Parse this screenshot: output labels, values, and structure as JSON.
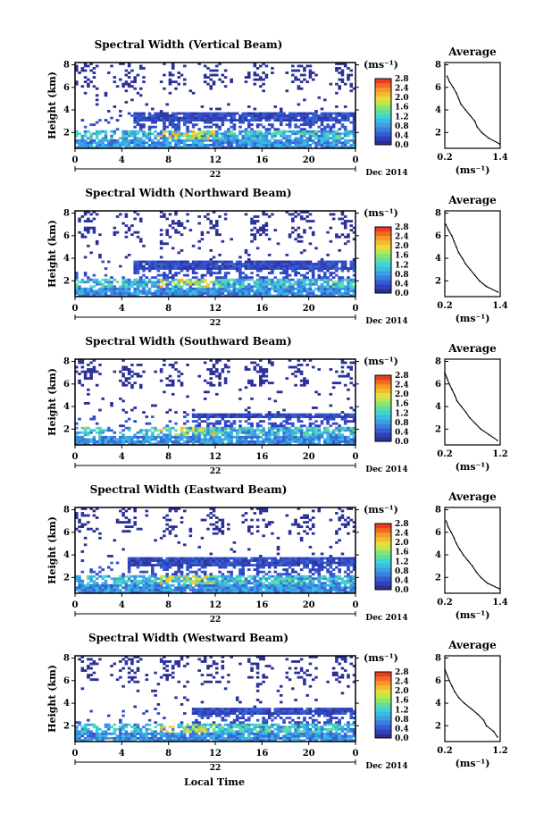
{
  "figure": {
    "xlabel": "Local Time",
    "date_label": "22",
    "month_label": "Dec 2014"
  },
  "chart_data": [
    {
      "type": "heatmap",
      "title": "Spectral Width (Vertical Beam)",
      "ylabel": "Height (km)",
      "xticks": [
        "0",
        "4",
        "8",
        "12",
        "16",
        "20",
        "0"
      ],
      "xlim": [
        0,
        24
      ],
      "yticks": [
        "2",
        "4",
        "6",
        "8"
      ],
      "ylim": [
        0.6,
        8.2
      ],
      "colorbar": {
        "label": "(ms⁻¹)",
        "ticks": [
          "0.0",
          "0.4",
          "0.8",
          "1.2",
          "1.6",
          "2.0",
          "2.4",
          "2.8"
        ],
        "range": [
          0.0,
          2.8
        ]
      },
      "dense_layer": {
        "start_hr": 5.0,
        "top_km": 3.7
      },
      "profile": {
        "title": "Average",
        "xlabel": "(ms⁻¹)",
        "xticks": [
          "0.2",
          "1.4"
        ],
        "xlim": [
          0.2,
          1.4
        ],
        "ylim": [
          0.6,
          8.2
        ],
        "yticks": [
          "2",
          "4",
          "6",
          "8"
        ],
        "height_km": [
          1.0,
          1.5,
          2.0,
          2.5,
          3.0,
          3.5,
          4.0,
          4.5,
          5.0,
          5.5,
          6.0,
          6.5,
          7.0
        ],
        "width": [
          1.38,
          1.15,
          1.0,
          0.9,
          0.85,
          0.75,
          0.65,
          0.55,
          0.5,
          0.45,
          0.38,
          0.3,
          0.25
        ]
      }
    },
    {
      "type": "heatmap",
      "title": "Spectral Width (Northward Beam)",
      "ylabel": "Height (km)",
      "xticks": [
        "0",
        "4",
        "8",
        "12",
        "16",
        "20",
        "0"
      ],
      "xlim": [
        0,
        24
      ],
      "yticks": [
        "2",
        "4",
        "6",
        "8"
      ],
      "ylim": [
        0.6,
        8.2
      ],
      "colorbar": {
        "label": "(ms⁻¹)",
        "ticks": [
          "0.0",
          "0.4",
          "0.8",
          "1.2",
          "1.6",
          "2.0",
          "2.4",
          "2.8"
        ],
        "range": [
          0.0,
          2.8
        ]
      },
      "dense_layer": {
        "start_hr": 5.0,
        "top_km": 3.7
      },
      "profile": {
        "title": "Average",
        "xlabel": "(ms⁻¹)",
        "xticks": [
          "0.2",
          "1.4"
        ],
        "xlim": [
          0.2,
          1.4
        ],
        "ylim": [
          0.6,
          8.2
        ],
        "yticks": [
          "2",
          "4",
          "6",
          "8"
        ],
        "height_km": [
          1.0,
          1.5,
          2.0,
          2.5,
          3.0,
          3.5,
          4.0,
          4.5,
          5.0,
          5.5,
          6.0,
          6.5,
          7.0
        ],
        "width": [
          1.35,
          1.1,
          0.95,
          0.85,
          0.75,
          0.65,
          0.58,
          0.5,
          0.45,
          0.4,
          0.35,
          0.28,
          0.22
        ]
      }
    },
    {
      "type": "heatmap",
      "title": "Spectral Width (Southward Beam)",
      "ylabel": "Height (km)",
      "xticks": [
        "0",
        "4",
        "8",
        "12",
        "16",
        "20",
        "0"
      ],
      "xlim": [
        0,
        24
      ],
      "yticks": [
        "2",
        "4",
        "6",
        "8"
      ],
      "ylim": [
        0.6,
        8.2
      ],
      "colorbar": {
        "label": "(ms⁻¹)",
        "ticks": [
          "0.0",
          "0.4",
          "0.8",
          "1.2",
          "1.6",
          "2.0",
          "2.4",
          "2.8"
        ],
        "range": [
          0.0,
          2.8
        ]
      },
      "dense_layer": {
        "start_hr": 10.0,
        "top_km": 3.5
      },
      "profile": {
        "title": "Average",
        "xlabel": "(ms⁻¹)",
        "xticks": [
          "0.2",
          "1.2"
        ],
        "xlim": [
          0.2,
          1.2
        ],
        "ylim": [
          0.6,
          8.2
        ],
        "yticks": [
          "2",
          "4",
          "6",
          "8"
        ],
        "height_km": [
          1.0,
          1.5,
          2.0,
          2.5,
          3.0,
          3.5,
          4.0,
          4.5,
          5.0,
          5.5,
          6.0,
          6.5,
          7.0
        ],
        "width": [
          1.15,
          1.0,
          0.85,
          0.75,
          0.65,
          0.58,
          0.5,
          0.42,
          0.38,
          0.33,
          0.28,
          0.24,
          0.2
        ]
      }
    },
    {
      "type": "heatmap",
      "title": "Spectral Width (Eastward Beam)",
      "ylabel": "Height (km)",
      "xticks": [
        "0",
        "4",
        "8",
        "12",
        "16",
        "20",
        "0"
      ],
      "xlim": [
        0,
        24
      ],
      "yticks": [
        "2",
        "4",
        "6",
        "8"
      ],
      "ylim": [
        0.6,
        8.2
      ],
      "colorbar": {
        "label": "(ms⁻¹)",
        "ticks": [
          "0.0",
          "0.4",
          "0.8",
          "1.2",
          "1.6",
          "2.0",
          "2.4",
          "2.8"
        ],
        "range": [
          0.0,
          2.8
        ]
      },
      "dense_layer": {
        "start_hr": 4.5,
        "top_km": 3.8
      },
      "profile": {
        "title": "Average",
        "xlabel": "(ms⁻¹)",
        "xticks": [
          "0.2",
          "1.4"
        ],
        "xlim": [
          0.2,
          1.4
        ],
        "ylim": [
          0.6,
          8.2
        ],
        "yticks": [
          "2",
          "4",
          "6",
          "8"
        ],
        "height_km": [
          1.0,
          1.5,
          2.0,
          2.5,
          3.0,
          3.5,
          4.0,
          4.5,
          5.0,
          5.5,
          6.0,
          6.5,
          7.0
        ],
        "width": [
          1.38,
          1.12,
          0.98,
          0.88,
          0.8,
          0.7,
          0.6,
          0.52,
          0.45,
          0.4,
          0.34,
          0.27,
          0.23
        ]
      }
    },
    {
      "type": "heatmap",
      "title": "Spectral Width (Westward Beam)",
      "ylabel": "Height (km)",
      "xticks": [
        "0",
        "4",
        "8",
        "12",
        "16",
        "20",
        "0"
      ],
      "xlim": [
        0,
        24
      ],
      "yticks": [
        "2",
        "4",
        "6",
        "8"
      ],
      "ylim": [
        0.6,
        8.2
      ],
      "colorbar": {
        "label": "(ms⁻¹)",
        "ticks": [
          "0.0",
          "0.4",
          "0.8",
          "1.2",
          "1.6",
          "2.0",
          "2.4",
          "2.8"
        ],
        "range": [
          0.0,
          2.8
        ]
      },
      "dense_layer": {
        "start_hr": 10.0,
        "top_km": 3.6
      },
      "profile": {
        "title": "Average",
        "xlabel": "(ms⁻¹)",
        "xticks": [
          "0.2",
          "1.2"
        ],
        "xlim": [
          0.2,
          1.2
        ],
        "ylim": [
          0.6,
          8.2
        ],
        "yticks": [
          "2",
          "4",
          "6",
          "8"
        ],
        "height_km": [
          1.0,
          1.5,
          2.0,
          2.5,
          3.0,
          3.5,
          4.0,
          4.5,
          5.0,
          5.5,
          6.0,
          6.5,
          7.0
        ],
        "width": [
          1.15,
          1.08,
          0.95,
          0.9,
          0.8,
          0.68,
          0.55,
          0.45,
          0.38,
          0.33,
          0.28,
          0.24,
          0.2
        ]
      }
    }
  ]
}
